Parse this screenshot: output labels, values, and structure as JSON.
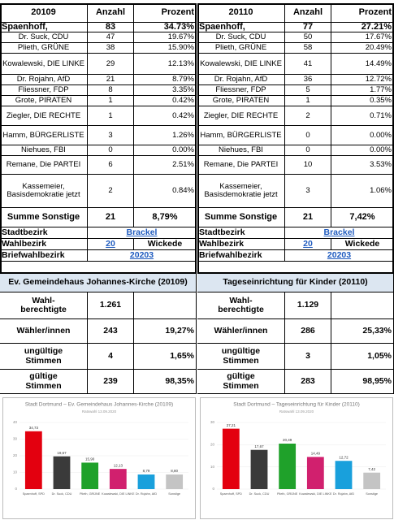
{
  "left": {
    "header": [
      "20109",
      "Anzahl",
      "Prozent"
    ],
    "rows": [
      [
        "Spaenhoff,",
        "83",
        "34.73%"
      ],
      [
        "Dr. Suck, CDU",
        "47",
        "19.67%"
      ],
      [
        "Plieth, GRÜNE",
        "38",
        "15.90%"
      ],
      [
        "Kowalewski, DIE LINKE",
        "29",
        "12.13%"
      ],
      [
        "Dr. Rojahn, AfD",
        "21",
        "8.79%"
      ],
      [
        "Fliessner, FDP",
        "8",
        "3.35%"
      ],
      [
        "Grote, PIRATEN",
        "1",
        "0.42%"
      ],
      [
        "Ziegler, DIE RECHTE",
        "1",
        "0.42%"
      ],
      [
        "Hamm, BÜRGERLISTE",
        "3",
        "1.26%"
      ],
      [
        "Niehues, FBI",
        "0",
        "0.00%"
      ],
      [
        "Remane, Die PARTEI",
        "6",
        "2.51%"
      ],
      [
        "Kassemeier, Basisdemokratie jetzt",
        "2",
        "0.84%"
      ]
    ],
    "sum": [
      "Summe Sonstige",
      "21",
      "8,79%"
    ],
    "stadtbezirk": [
      "Stadtbezirk",
      "Brackel"
    ],
    "wahlbezirk": [
      "Wahlbezirk",
      "20",
      "Wickede"
    ],
    "briefwahl": [
      "Briefwahlbezirk",
      "20203"
    ],
    "section": "Ev. Gemeindehaus Johannes-Kirche (20109)",
    "stats": [
      [
        "Wahl-\nberechtigte",
        "1.261"
      ],
      [
        "Wähler/innen",
        "243",
        "19,27%"
      ],
      [
        "ungültige\nStimmen",
        "4",
        "1,65%"
      ],
      [
        "gültige\nStimmen",
        "239",
        "98,35%"
      ]
    ]
  },
  "right": {
    "header": [
      "20110",
      "Anzahl",
      "Prozent"
    ],
    "rows": [
      [
        "Spaenhoff,",
        "77",
        "27.21%"
      ],
      [
        "Dr. Suck, CDU",
        "50",
        "17.67%"
      ],
      [
        "Plieth, GRÜNE",
        "58",
        "20.49%"
      ],
      [
        "Kowalewski, DIE LINKE",
        "41",
        "14.49%"
      ],
      [
        "Dr. Rojahn, AfD",
        "36",
        "12.72%"
      ],
      [
        "Fliessner, FDP",
        "5",
        "1.77%"
      ],
      [
        "Grote, PIRATEN",
        "1",
        "0.35%"
      ],
      [
        "Ziegler, DIE RECHTE",
        "2",
        "0.71%"
      ],
      [
        "Hamm, BÜRGERLISTE",
        "0",
        "0.00%"
      ],
      [
        "Niehues, FBI",
        "0",
        "0.00%"
      ],
      [
        "Remane, Die PARTEI",
        "10",
        "3.53%"
      ],
      [
        "Kassemeier, Basisdemokratie jetzt",
        "3",
        "1.06%"
      ]
    ],
    "sum": [
      "Summe Sonstige",
      "21",
      "7,42%"
    ],
    "stadtbezirk": [
      "Stadtbezirk",
      "Brackel"
    ],
    "wahlbezirk": [
      "Wahlbezirk",
      "20",
      "Wickede"
    ],
    "briefwahl": [
      "Briefwahlbezirk",
      "20203"
    ],
    "section": "Tageseinrichtung für Kinder (20110)",
    "stats": [
      [
        "Wahl-\nberechtigte",
        "1.129"
      ],
      [
        "Wähler/innen",
        "286",
        "25,33%"
      ],
      [
        "ungültige\nStimmen",
        "3",
        "1,05%"
      ],
      [
        "gültige\nStimmen",
        "283",
        "98,95%"
      ]
    ]
  },
  "chart_data": [
    {
      "type": "bar",
      "title": "Stadt Dortmund – Ev. Gemeindehaus Johannes-Kirche (20109)",
      "subtitle": "Ratswahl 13.09.2020",
      "categories": [
        "Spaenhoff, SPD",
        "Dr. Suck, CDU",
        "Plieth, GRÜNE",
        "Kowalewski, DIE LINKE",
        "Dr. Rojahn, AfD",
        "Sonstige"
      ],
      "values": [
        34.73,
        19.67,
        15.9,
        12.13,
        8.79,
        8.8
      ],
      "value_labels": [
        "34,73",
        "19,67",
        "15,90",
        "12,13",
        "8,79",
        "8,80"
      ],
      "colors": [
        "#e3000f",
        "#3a3a3a",
        "#1fa12a",
        "#d1206e",
        "#19a0dc",
        "#c4c4c4"
      ],
      "ylim": [
        0,
        40
      ],
      "yticks": [
        0,
        10,
        20,
        30,
        40
      ],
      "grid": true
    },
    {
      "type": "bar",
      "title": "Stadt Dortmund – Tageseinrichtung für Kinder (20110)",
      "subtitle": "Ratswahl 13.09.2020",
      "categories": [
        "Spaenhoff, SPD",
        "Dr. Suck, CDU",
        "Plieth, GRÜNE",
        "Kowalewski, DIE LINKE",
        "Dr. Rojahn, AfD",
        "Sonstige"
      ],
      "values": [
        27.21,
        17.67,
        20.49,
        14.49,
        12.72,
        7.42
      ],
      "value_labels": [
        "27,21",
        "17,67",
        "20,49",
        "14,49",
        "12,72",
        "7,42"
      ],
      "colors": [
        "#e3000f",
        "#3a3a3a",
        "#1fa12a",
        "#d1206e",
        "#19a0dc",
        "#c4c4c4"
      ],
      "ylim": [
        0,
        30
      ],
      "yticks": [
        0,
        10,
        20,
        30
      ],
      "grid": true
    }
  ]
}
